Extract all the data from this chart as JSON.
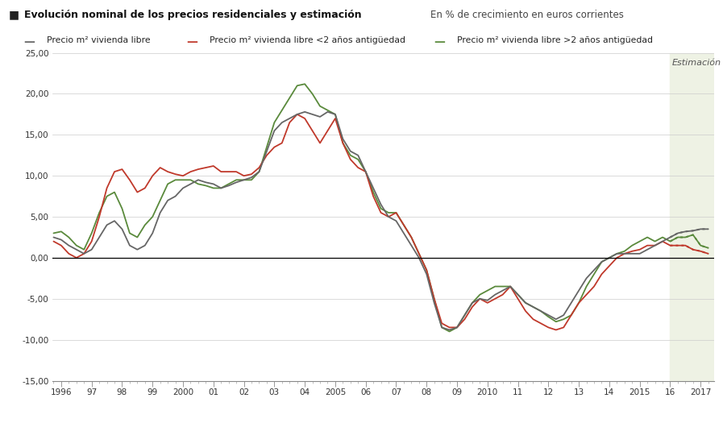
{
  "title_bold": "Evolución nominal de los precios residenciales y estimación",
  "title_light": "En % de crecimiento en euros corrientes",
  "legend_labels": [
    "Precio m² vivienda libre",
    "Precio m² vivienda libre <2 años antigüedad",
    "Precio m² vivienda libre >2 años antigüedad"
  ],
  "background_color": "#ffffff",
  "estimation_bg": "#eef2e4",
  "estimation_label": "Estimación",
  "estimation_start": 2016.0,
  "estimation_end": 2017.42,
  "ylim": [
    -15,
    25
  ],
  "yticks": [
    -15,
    -10,
    -5,
    0,
    5,
    10,
    15,
    20,
    25
  ],
  "xlim_start": 1995.7,
  "xlim_end": 2017.45,
  "xtick_labels": [
    "1996",
    "97",
    "98",
    "99",
    "2000",
    "01",
    "02",
    "03",
    "04",
    "2005",
    "06",
    "07",
    "08",
    "09",
    "2010",
    "11",
    "12",
    "13",
    "14",
    "2015",
    "16",
    "2017"
  ],
  "xtick_positions": [
    1996,
    1997,
    1998,
    1999,
    2000,
    2001,
    2002,
    2003,
    2004,
    2005,
    2006,
    2007,
    2008,
    2009,
    2010,
    2011,
    2012,
    2013,
    2014,
    2015,
    2016,
    2017
  ],
  "line_colors": {
    "gray": "#666666",
    "red": "#c0392b",
    "green": "#5a8a3c"
  },
  "line_width": 1.3,
  "gray_series_x": [
    1995.75,
    1996.0,
    1996.25,
    1996.5,
    1996.75,
    1997.0,
    1997.25,
    1997.5,
    1997.75,
    1998.0,
    1998.25,
    1998.5,
    1998.75,
    1999.0,
    1999.25,
    1999.5,
    1999.75,
    2000.0,
    2000.25,
    2000.5,
    2000.75,
    2001.0,
    2001.25,
    2001.5,
    2001.75,
    2002.0,
    2002.25,
    2002.5,
    2002.75,
    2003.0,
    2003.25,
    2003.5,
    2003.75,
    2004.0,
    2004.25,
    2004.5,
    2004.75,
    2005.0,
    2005.25,
    2005.5,
    2005.75,
    2006.0,
    2006.25,
    2006.5,
    2006.75,
    2007.0,
    2007.25,
    2007.5,
    2007.75,
    2008.0,
    2008.25,
    2008.5,
    2008.75,
    2009.0,
    2009.25,
    2009.5,
    2009.75,
    2010.0,
    2010.25,
    2010.5,
    2010.75,
    2011.0,
    2011.25,
    2011.5,
    2011.75,
    2012.0,
    2012.25,
    2012.5,
    2012.75,
    2013.0,
    2013.25,
    2013.5,
    2013.75,
    2014.0,
    2014.25,
    2014.5,
    2014.75,
    2015.0,
    2015.25,
    2015.5,
    2015.75,
    2016.0,
    2016.25,
    2016.5,
    2016.75,
    2017.0,
    2017.25
  ],
  "gray_series_y": [
    2.5,
    2.2,
    1.5,
    1.0,
    0.5,
    1.0,
    2.5,
    4.0,
    4.5,
    3.5,
    1.5,
    1.0,
    1.5,
    3.0,
    5.5,
    7.0,
    7.5,
    8.5,
    9.0,
    9.5,
    9.2,
    9.0,
    8.5,
    8.8,
    9.2,
    9.5,
    9.8,
    10.5,
    13.0,
    15.5,
    16.5,
    17.0,
    17.5,
    17.8,
    17.5,
    17.2,
    17.8,
    17.5,
    14.5,
    13.0,
    12.5,
    10.5,
    8.5,
    6.5,
    5.0,
    4.5,
    3.0,
    1.5,
    0.0,
    -2.0,
    -5.5,
    -8.5,
    -8.8,
    -8.5,
    -7.0,
    -5.5,
    -5.0,
    -5.2,
    -4.5,
    -4.0,
    -3.5,
    -4.5,
    -5.5,
    -6.0,
    -6.5,
    -7.0,
    -7.5,
    -7.0,
    -5.5,
    -4.0,
    -2.5,
    -1.5,
    -0.5,
    0.0,
    0.5,
    0.5,
    0.5,
    0.5,
    1.0,
    1.5,
    2.0,
    2.5,
    3.0,
    3.2,
    3.3,
    3.5,
    3.5
  ],
  "red_series_x": [
    1995.75,
    1996.0,
    1996.25,
    1996.5,
    1996.75,
    1997.0,
    1997.25,
    1997.5,
    1997.75,
    1998.0,
    1998.25,
    1998.5,
    1998.75,
    1999.0,
    1999.25,
    1999.5,
    1999.75,
    2000.0,
    2000.25,
    2000.5,
    2000.75,
    2001.0,
    2001.25,
    2001.5,
    2001.75,
    2002.0,
    2002.25,
    2002.5,
    2002.75,
    2003.0,
    2003.25,
    2003.5,
    2003.75,
    2004.0,
    2004.25,
    2004.5,
    2004.75,
    2005.0,
    2005.25,
    2005.5,
    2005.75,
    2006.0,
    2006.25,
    2006.5,
    2006.75,
    2007.0,
    2007.25,
    2007.5,
    2007.75,
    2008.0,
    2008.25,
    2008.5,
    2008.75,
    2009.0,
    2009.25,
    2009.5,
    2009.75,
    2010.0,
    2010.25,
    2010.5,
    2010.75,
    2011.0,
    2011.25,
    2011.5,
    2011.75,
    2012.0,
    2012.25,
    2012.5,
    2012.75,
    2013.0,
    2013.25,
    2013.5,
    2013.75,
    2014.0,
    2014.25,
    2014.5,
    2014.75,
    2015.0,
    2015.25,
    2015.5,
    2015.75,
    2016.0,
    2016.25,
    2016.5,
    2016.75,
    2017.0,
    2017.25
  ],
  "red_series_y": [
    2.0,
    1.5,
    0.5,
    0.0,
    0.5,
    2.0,
    5.0,
    8.5,
    10.5,
    10.8,
    9.5,
    8.0,
    8.5,
    10.0,
    11.0,
    10.5,
    10.2,
    10.0,
    10.5,
    10.8,
    11.0,
    11.2,
    10.5,
    10.5,
    10.5,
    10.0,
    10.2,
    11.0,
    12.5,
    13.5,
    14.0,
    16.5,
    17.5,
    17.0,
    15.5,
    14.0,
    15.5,
    17.0,
    14.0,
    12.0,
    11.0,
    10.5,
    7.5,
    5.5,
    5.0,
    5.5,
    4.0,
    2.5,
    0.5,
    -1.5,
    -5.0,
    -8.0,
    -8.5,
    -8.5,
    -7.5,
    -6.0,
    -5.0,
    -5.5,
    -5.0,
    -4.5,
    -3.5,
    -5.0,
    -6.5,
    -7.5,
    -8.0,
    -8.5,
    -8.8,
    -8.5,
    -7.0,
    -5.5,
    -4.5,
    -3.5,
    -2.0,
    -1.0,
    0.0,
    0.5,
    0.8,
    1.0,
    1.5,
    1.5,
    2.0,
    1.5,
    1.5,
    1.5,
    1.0,
    0.8,
    0.5
  ],
  "green_series_x": [
    1995.75,
    1996.0,
    1996.25,
    1996.5,
    1996.75,
    1997.0,
    1997.25,
    1997.5,
    1997.75,
    1998.0,
    1998.25,
    1998.5,
    1998.75,
    1999.0,
    1999.25,
    1999.5,
    1999.75,
    2000.0,
    2000.25,
    2000.5,
    2000.75,
    2001.0,
    2001.25,
    2001.5,
    2001.75,
    2002.0,
    2002.25,
    2002.5,
    2002.75,
    2003.0,
    2003.25,
    2003.5,
    2003.75,
    2004.0,
    2004.25,
    2004.5,
    2004.75,
    2005.0,
    2005.25,
    2005.5,
    2005.75,
    2006.0,
    2006.25,
    2006.5,
    2006.75,
    2007.0,
    2007.25,
    2007.5,
    2007.75,
    2008.0,
    2008.25,
    2008.5,
    2008.75,
    2009.0,
    2009.25,
    2009.5,
    2009.75,
    2010.0,
    2010.25,
    2010.5,
    2010.75,
    2011.0,
    2011.25,
    2011.5,
    2011.75,
    2012.0,
    2012.25,
    2012.5,
    2012.75,
    2013.0,
    2013.25,
    2013.5,
    2013.75,
    2014.0,
    2014.25,
    2014.5,
    2014.75,
    2015.0,
    2015.25,
    2015.5,
    2015.75,
    2016.0,
    2016.25,
    2016.5,
    2016.75,
    2017.0,
    2017.25
  ],
  "green_series_y": [
    3.0,
    3.2,
    2.5,
    1.5,
    1.0,
    3.0,
    5.5,
    7.5,
    8.0,
    6.0,
    3.0,
    2.5,
    4.0,
    5.0,
    7.0,
    9.0,
    9.5,
    9.5,
    9.5,
    9.0,
    8.8,
    8.5,
    8.5,
    9.0,
    9.5,
    9.5,
    9.5,
    10.5,
    13.5,
    16.5,
    18.0,
    19.5,
    21.0,
    21.2,
    20.0,
    18.5,
    18.0,
    17.5,
    14.0,
    12.5,
    12.0,
    10.5,
    8.0,
    6.0,
    5.5,
    5.5,
    4.0,
    2.5,
    0.5,
    -1.5,
    -5.0,
    -8.5,
    -9.0,
    -8.5,
    -7.0,
    -5.5,
    -4.5,
    -4.0,
    -3.5,
    -3.5,
    -3.5,
    -4.5,
    -5.5,
    -6.0,
    -6.5,
    -7.2,
    -7.8,
    -7.5,
    -7.0,
    -5.5,
    -3.5,
    -2.0,
    -0.5,
    0.0,
    0.5,
    0.8,
    1.5,
    2.0,
    2.5,
    2.0,
    2.5,
    2.0,
    2.5,
    2.5,
    2.8,
    1.5,
    1.2
  ]
}
